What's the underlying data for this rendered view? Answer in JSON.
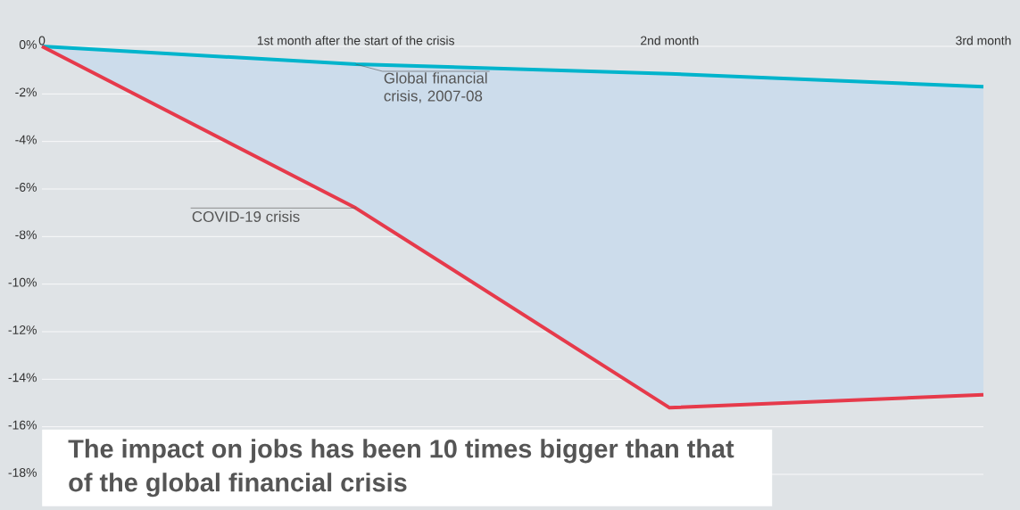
{
  "chart_data": {
    "type": "line",
    "title": "The impact on jobs has been 10 times bigger than that of the global financial crisis",
    "categories": [
      "0",
      "1st month after the start of the crisis",
      "2nd month",
      "3rd month"
    ],
    "series": [
      {
        "name": "Global financial crisis, 2007-08",
        "color": "#00b4cc",
        "values": [
          0,
          -0.75,
          -1.15,
          -1.7
        ],
        "lower": [
          0,
          -6.8,
          -15.2,
          -14.65
        ],
        "upper": [
          0,
          -0.75,
          -1.15,
          -1.7
        ]
      },
      {
        "name": "COVID-19 crisis",
        "color": "#e63a4b",
        "values": [
          0,
          -6.8,
          -15.2,
          -14.65
        ]
      }
    ],
    "ylim": [
      -18,
      0
    ],
    "yticks": [
      {
        "value": 0,
        "label": "0%"
      },
      {
        "value": -2,
        "label": "-2%"
      },
      {
        "value": -4,
        "label": "-4%"
      },
      {
        "value": -6,
        "label": "-6%"
      },
      {
        "value": -8,
        "label": "-8%"
      },
      {
        "value": -10,
        "label": "-10%"
      },
      {
        "value": -12,
        "label": "-12%"
      },
      {
        "value": -14,
        "label": "-14%"
      },
      {
        "value": -16,
        "label": "-16%"
      },
      {
        "value": -18,
        "label": "-18%"
      }
    ],
    "grid": "y",
    "marker": "none",
    "line_style": "solid"
  }
}
